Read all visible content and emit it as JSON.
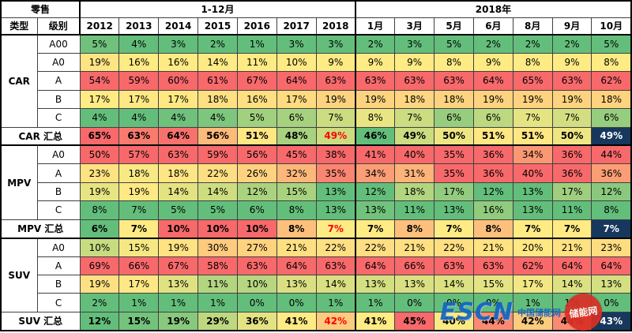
{
  "chart_data": {
    "type": "heatmap",
    "title": "零售",
    "row_header": {
      "type": "类型",
      "class": "级别"
    },
    "column_groups": [
      {
        "label": "1-12月",
        "columns": [
          "2012",
          "2013",
          "2014",
          "2015",
          "2016",
          "2017",
          "2018"
        ]
      },
      {
        "label": "2018年",
        "columns": [
          "1月",
          "3月",
          "5月",
          "6月",
          "8月",
          "9月",
          "10月"
        ]
      }
    ],
    "unit": "%",
    "groups": [
      {
        "type": "CAR",
        "classes": [
          {
            "class": "A00",
            "values": [
              5,
              4,
              3,
              2,
              1,
              3,
              3,
              2,
              3,
              5,
              2,
              2,
              2,
              5
            ]
          },
          {
            "class": "A0",
            "values": [
              19,
              16,
              16,
              14,
              11,
              10,
              9,
              9,
              9,
              8,
              9,
              8,
              9,
              8
            ]
          },
          {
            "class": "A",
            "values": [
              54,
              59,
              60,
              61,
              67,
              64,
              63,
              63,
              63,
              63,
              64,
              65,
              63,
              62
            ]
          },
          {
            "class": "B",
            "values": [
              17,
              17,
              17,
              18,
              16,
              17,
              19,
              19,
              18,
              18,
              19,
              19,
              19,
              18
            ]
          },
          {
            "class": "C",
            "values": [
              4,
              4,
              4,
              4,
              5,
              6,
              7,
              8,
              7,
              6,
              6,
              7,
              7,
              6
            ]
          }
        ],
        "summary": {
          "label": "CAR 汇总",
          "values": [
            65,
            63,
            64,
            56,
            51,
            48,
            49,
            46,
            49,
            50,
            51,
            51,
            50,
            49
          ]
        }
      },
      {
        "type": "MPV",
        "classes": [
          {
            "class": "A0",
            "values": [
              50,
              57,
              63,
              59,
              56,
              45,
              38,
              41,
              40,
              35,
              36,
              34,
              36,
              44
            ]
          },
          {
            "class": "A",
            "values": [
              23,
              18,
              18,
              22,
              26,
              32,
              35,
              34,
              31,
              35,
              36,
              40,
              36,
              36
            ]
          },
          {
            "class": "B",
            "values": [
              19,
              19,
              14,
              14,
              12,
              15,
              13,
              12,
              18,
              17,
              12,
              13,
              17,
              12
            ]
          },
          {
            "class": "C",
            "values": [
              8,
              7,
              5,
              5,
              6,
              8,
              13,
              13,
              11,
              13,
              16,
              13,
              11,
              8
            ]
          }
        ],
        "summary": {
          "label": "MPV 汇总",
          "values": [
            6,
            7,
            10,
            10,
            10,
            8,
            7,
            7,
            8,
            7,
            8,
            7,
            7,
            7
          ]
        }
      },
      {
        "type": "SUV",
        "classes": [
          {
            "class": "A0",
            "values": [
              10,
              15,
              19,
              30,
              27,
              21,
              22,
              22,
              21,
              22,
              21,
              20,
              21,
              23
            ]
          },
          {
            "class": "A",
            "values": [
              69,
              66,
              67,
              58,
              63,
              64,
              63,
              64,
              66,
              63,
              63,
              62,
              64,
              64
            ]
          },
          {
            "class": "B",
            "values": [
              19,
              17,
              13,
              11,
              10,
              13,
              14,
              13,
              13,
              14,
              15,
              17,
              14,
              13
            ]
          },
          {
            "class": "C",
            "values": [
              2,
              1,
              1,
              1,
              0,
              0,
              1,
              1,
              0,
              0,
              0,
              1,
              1,
              0
            ]
          }
        ],
        "summary": {
          "label": "SUV 汇总",
          "values": [
            12,
            15,
            19,
            29,
            36,
            41,
            42,
            41,
            45,
            40,
            44,
            42,
            44,
            43
          ]
        }
      }
    ],
    "legend_note": "conditional 3-color scale per column within each type group; summary rows scaled across the row: green = low, yellow = mid, red = high"
  },
  "colors": {
    "scale_min": "#63BE7B",
    "scale_mid": "#FFEB84",
    "scale_max": "#F8696B",
    "summary_2018_text": "#FF0000",
    "summary_highlight_bg": "#17375D",
    "summary_highlight_text": "#FFFFFF",
    "grid_border": "#404040"
  },
  "watermark": {
    "escn": "ESCN",
    "site": "中国储能网",
    "stamp": "储能网"
  }
}
